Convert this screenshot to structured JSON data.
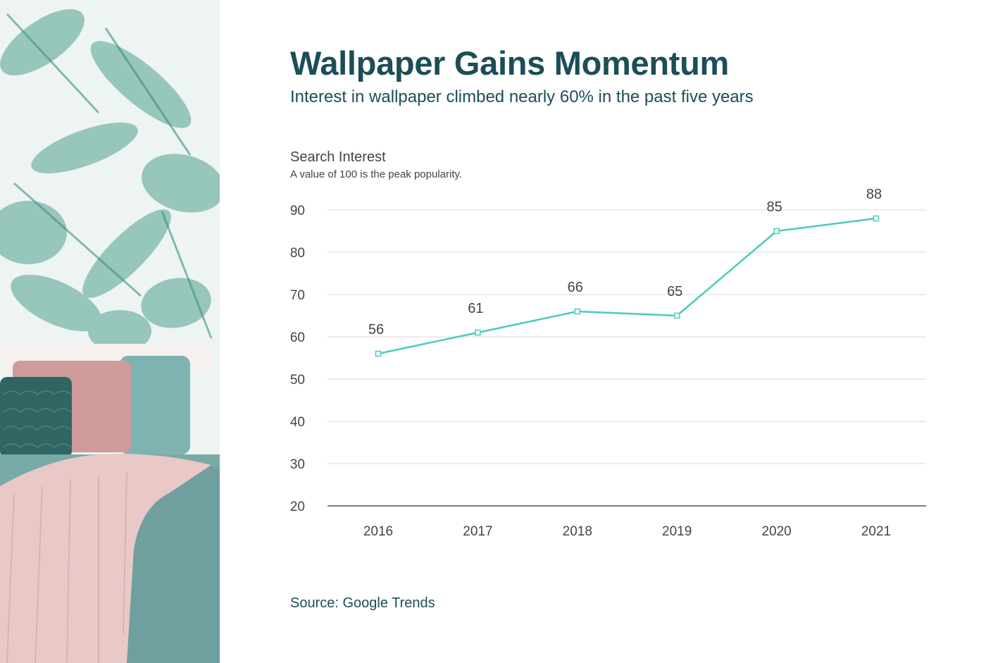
{
  "header": {
    "title": "Wallpaper Gains Momentum",
    "subtitle": "Interest in wallpaper climbed nearly 60% in the past five years"
  },
  "chart_header": {
    "label": "Search Interest",
    "note": "A value of 100 is the peak popularity."
  },
  "source": "Source: Google Trends",
  "photo": {
    "description_icon": "bedroom-photo-icon"
  },
  "colors": {
    "title": "#1b4e57",
    "line": "#4ccabd",
    "grid": "#d8d8d8",
    "axis": "#555555",
    "text": "#444444"
  },
  "chart_data": {
    "type": "line",
    "title": "Wallpaper Gains Momentum",
    "ylabel": "Search Interest",
    "xlabel": "",
    "x": [
      "2016",
      "2017",
      "2018",
      "2019",
      "2020",
      "2021"
    ],
    "series": [
      {
        "values": [
          56,
          61,
          66,
          65,
          85,
          88
        ]
      }
    ],
    "ylim": [
      20,
      90
    ],
    "yticks": [
      20,
      30,
      40,
      50,
      60,
      70,
      80,
      90
    ],
    "grid": true,
    "data_labels": true,
    "markers": "hollow-square",
    "legend": "none"
  }
}
